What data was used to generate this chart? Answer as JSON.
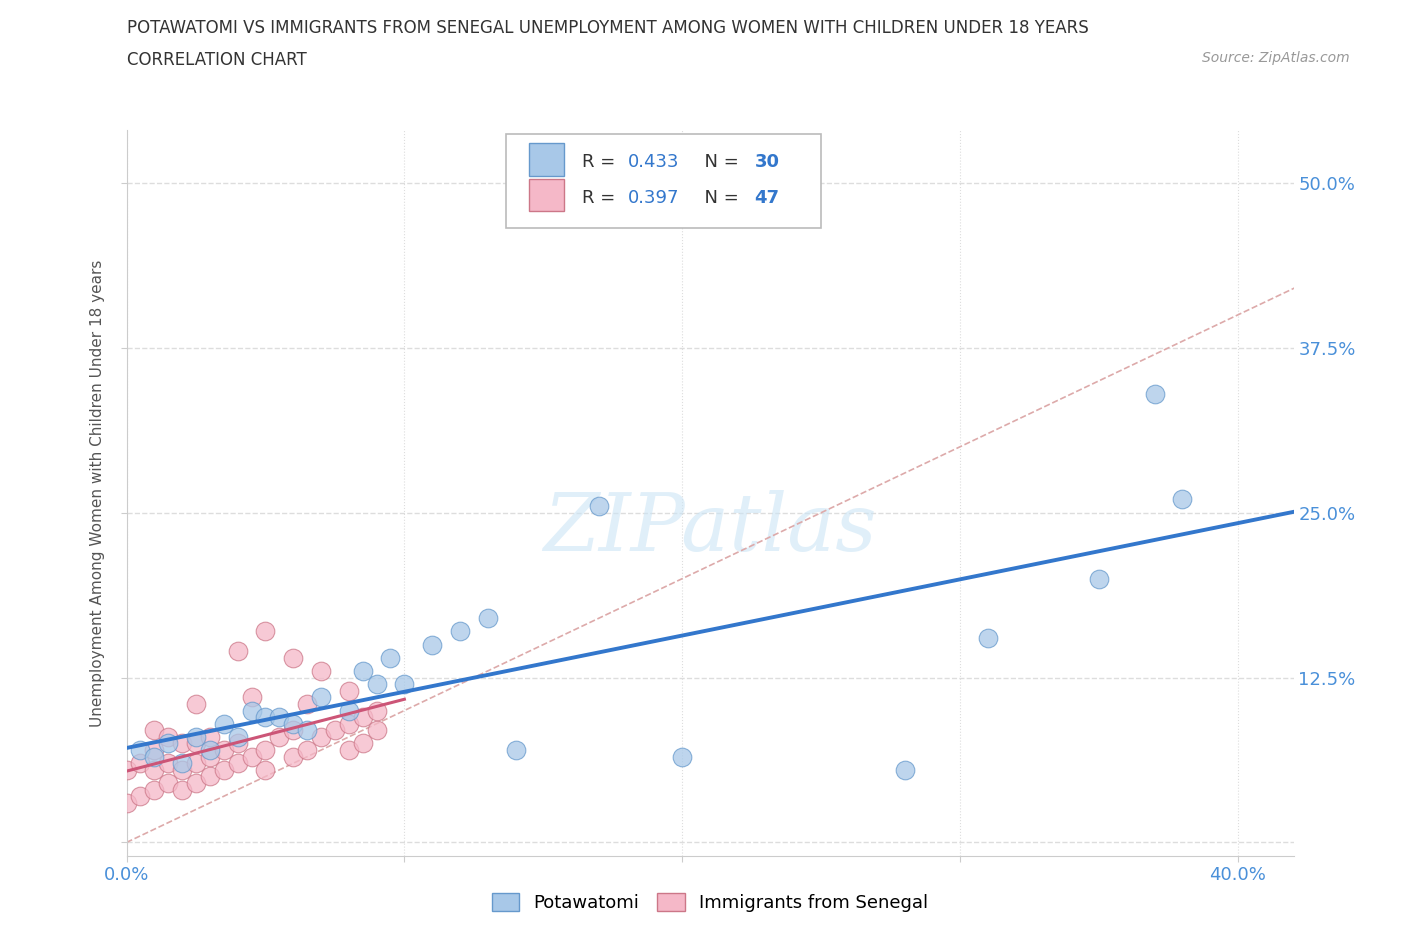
{
  "title_line1": "POTAWATOMI VS IMMIGRANTS FROM SENEGAL UNEMPLOYMENT AMONG WOMEN WITH CHILDREN UNDER 18 YEARS",
  "title_line2": "CORRELATION CHART",
  "source_text": "Source: ZipAtlas.com",
  "ylabel": "Unemployment Among Women with Children Under 18 years",
  "xlim": [
    0.0,
    0.42
  ],
  "ylim": [
    -0.01,
    0.54
  ],
  "xtick_positions": [
    0.0,
    0.1,
    0.2,
    0.3,
    0.4
  ],
  "xticklabels": [
    "0.0%",
    "",
    "",
    "",
    "40.0%"
  ],
  "ytick_positions": [
    0.0,
    0.125,
    0.25,
    0.375,
    0.5
  ],
  "yticklabels": [
    "",
    "12.5%",
    "25.0%",
    "37.5%",
    "50.0%"
  ],
  "R_potawatomi": 0.433,
  "N_potawatomi": 30,
  "R_senegal": 0.397,
  "N_senegal": 47,
  "color_potawatomi": "#a8c8e8",
  "color_senegal": "#f5b8c8",
  "edge_potawatomi": "#6699cc",
  "edge_senegal": "#cc7788",
  "trendline_potawatomi_color": "#3377cc",
  "trendline_senegal_color": "#cc5577",
  "background_color": "#ffffff",
  "grid_color": "#dddddd",
  "title_color": "#333333",
  "axis_label_color": "#555555",
  "tick_label_color": "#4a90d9",
  "potawatomi_x": [
    0.005,
    0.01,
    0.015,
    0.02,
    0.025,
    0.03,
    0.035,
    0.04,
    0.045,
    0.05,
    0.055,
    0.06,
    0.065,
    0.07,
    0.08,
    0.085,
    0.09,
    0.095,
    0.1,
    0.11,
    0.12,
    0.13,
    0.14,
    0.17,
    0.2,
    0.28,
    0.31,
    0.35,
    0.37,
    0.38
  ],
  "potawatomi_y": [
    0.07,
    0.065,
    0.075,
    0.06,
    0.08,
    0.07,
    0.09,
    0.08,
    0.1,
    0.095,
    0.095,
    0.09,
    0.085,
    0.11,
    0.1,
    0.13,
    0.12,
    0.14,
    0.12,
    0.15,
    0.16,
    0.17,
    0.07,
    0.255,
    0.065,
    0.055,
    0.155,
    0.2,
    0.34,
    0.26
  ],
  "senegal_x": [
    0.0,
    0.0,
    0.005,
    0.005,
    0.01,
    0.01,
    0.01,
    0.01,
    0.015,
    0.015,
    0.015,
    0.02,
    0.02,
    0.02,
    0.025,
    0.025,
    0.025,
    0.025,
    0.03,
    0.03,
    0.03,
    0.035,
    0.035,
    0.04,
    0.04,
    0.04,
    0.045,
    0.045,
    0.05,
    0.05,
    0.05,
    0.055,
    0.06,
    0.06,
    0.06,
    0.065,
    0.065,
    0.07,
    0.07,
    0.075,
    0.08,
    0.08,
    0.08,
    0.085,
    0.085,
    0.09,
    0.09
  ],
  "senegal_y": [
    0.03,
    0.055,
    0.035,
    0.06,
    0.04,
    0.055,
    0.07,
    0.085,
    0.045,
    0.06,
    0.08,
    0.04,
    0.055,
    0.075,
    0.045,
    0.06,
    0.075,
    0.105,
    0.05,
    0.065,
    0.08,
    0.055,
    0.07,
    0.06,
    0.075,
    0.145,
    0.065,
    0.11,
    0.055,
    0.07,
    0.16,
    0.08,
    0.065,
    0.085,
    0.14,
    0.07,
    0.105,
    0.08,
    0.13,
    0.085,
    0.07,
    0.09,
    0.115,
    0.075,
    0.095,
    0.085,
    0.1
  ]
}
